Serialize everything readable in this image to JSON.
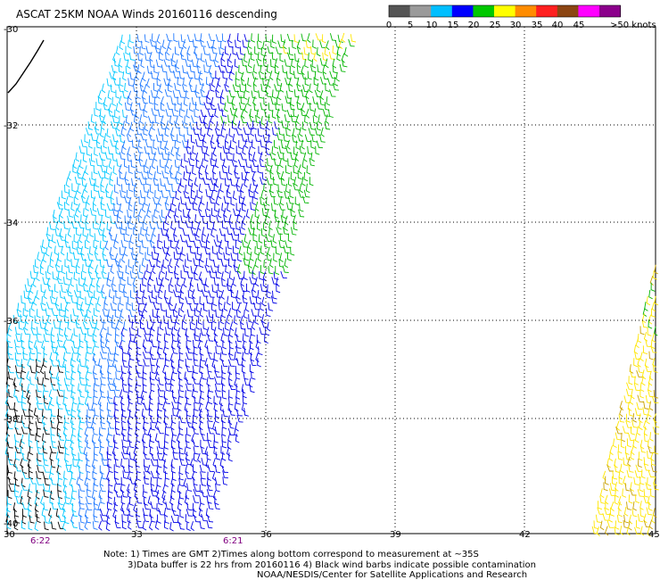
{
  "title": "ASCAT 25KM NOAA Winds 20160116 descending",
  "legend": {
    "colors": [
      "#555555",
      "#9a9a9a",
      "#00bfff",
      "#0000ff",
      "#00c800",
      "#ffff00",
      "#ff8c00",
      "#ff2020",
      "#8b4513",
      "#ff00ff",
      "#8b008b"
    ],
    "ticks": [
      "0",
      "5",
      "10",
      "15",
      "20",
      "25",
      "30",
      "35",
      "40",
      "45",
      ">50 knots"
    ]
  },
  "lat_labels": [
    "-30",
    "-32",
    "-34",
    "-36",
    "-38",
    "-40"
  ],
  "lon_labels": [
    "30",
    "33",
    "36",
    "39",
    "42",
    "45"
  ],
  "times": [
    {
      "label": "6:22",
      "color": "#800080"
    },
    {
      "label": "6:21",
      "color": "#800080"
    }
  ],
  "notes": {
    "line1": "Note: 1) Times are GMT 2)Times along bottom correspond to measurement at ~35S",
    "line2": "3)Data buffer is 22 hrs from 20160116 4) Black wind barbs indicate possible contamination",
    "line3": "NOAA/NESDIS/Center for Satellite Applications and Research"
  },
  "barb_colors": {
    "light_blue": "#00c8ff",
    "mid_blue": "#1e78ff",
    "blue": "#0000e6",
    "green": "#00b400",
    "yellow": "#ffe600",
    "dark_yellow": "#c8a000",
    "black": "#000000"
  }
}
